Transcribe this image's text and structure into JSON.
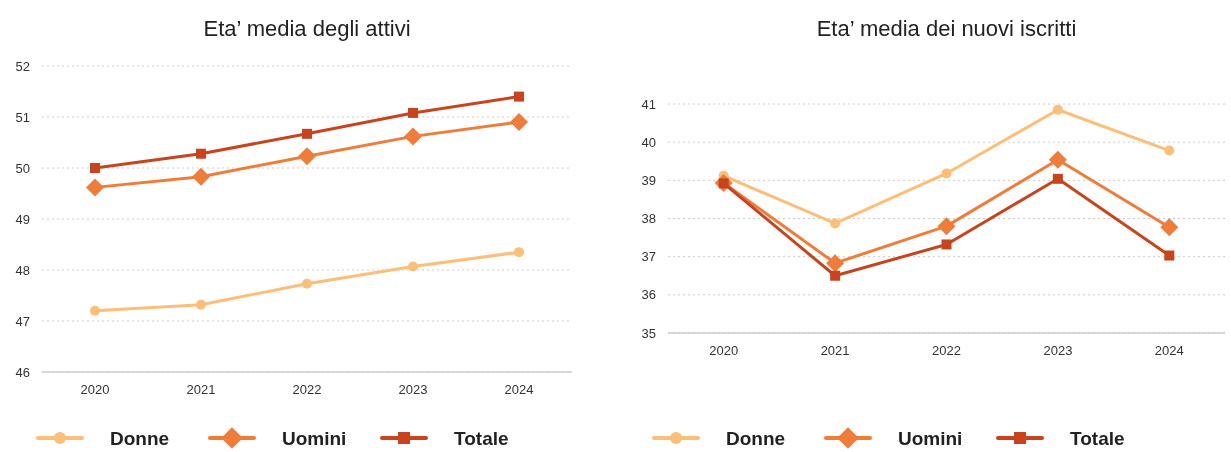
{
  "chart_data": [
    {
      "type": "line",
      "title": "Eta’ media degli attivi",
      "categories": [
        "2020",
        "2021",
        "2022",
        "2023",
        "2024"
      ],
      "ylim": [
        46,
        52
      ],
      "yticks": [
        46,
        47,
        48,
        49,
        50,
        51,
        52
      ],
      "grid": "y",
      "legend": "bottom",
      "series": [
        {
          "name": "Donne",
          "color": "#fdbe78",
          "marker": "circle",
          "values": [
            47.2,
            47.32,
            47.73,
            48.07,
            48.35
          ]
        },
        {
          "name": "Uomini",
          "color": "#f07c3a",
          "marker": "diamond",
          "values": [
            49.62,
            49.83,
            50.23,
            50.62,
            50.9
          ]
        },
        {
          "name": "Totale",
          "color": "#c8441c",
          "marker": "square",
          "values": [
            50.0,
            50.28,
            50.67,
            51.08,
            51.4
          ]
        }
      ]
    },
    {
      "type": "line",
      "title": "Eta’ media dei nuovi iscritti",
      "categories": [
        "2020",
        "2021",
        "2022",
        "2023",
        "2024"
      ],
      "ylim": [
        35,
        41
      ],
      "yticks": [
        35,
        36,
        37,
        38,
        39,
        40,
        41
      ],
      "grid": "y",
      "legend": "bottom",
      "series": [
        {
          "name": "Donne",
          "color": "#fdbe78",
          "marker": "circle",
          "values": [
            39.12,
            37.87,
            39.18,
            40.85,
            39.78
          ]
        },
        {
          "name": "Uomini",
          "color": "#f07c3a",
          "marker": "diamond",
          "values": [
            38.93,
            36.83,
            37.8,
            39.54,
            37.77
          ]
        },
        {
          "name": "Totale",
          "color": "#c8441c",
          "marker": "square",
          "values": [
            38.92,
            36.5,
            37.32,
            39.04,
            37.03
          ]
        }
      ]
    }
  ]
}
